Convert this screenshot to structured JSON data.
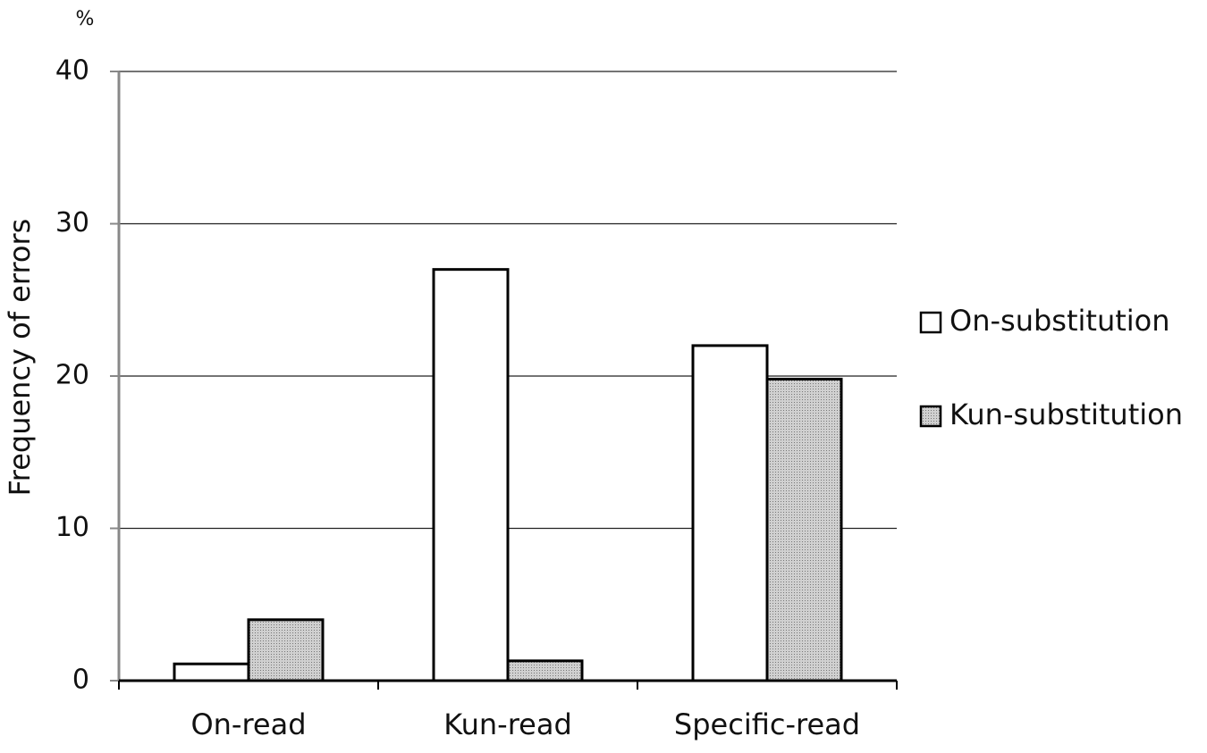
{
  "chart_data": {
    "type": "bar",
    "y_unit": "%",
    "y_label": "Frequency of errors",
    "categories": [
      "On-read",
      "Kun-read",
      "Specific-read"
    ],
    "series": [
      {
        "name": "On-substitution",
        "color": "#ffffff",
        "values": [
          1.1,
          27,
          22
        ]
      },
      {
        "name": "Kun-substitution",
        "color": "#c0c0c0",
        "values": [
          4,
          1.3,
          19.8
        ]
      }
    ],
    "ylim": [
      0,
      40
    ],
    "yticks": [
      0,
      10,
      20,
      30,
      40
    ],
    "grid": true,
    "legend": "right"
  }
}
